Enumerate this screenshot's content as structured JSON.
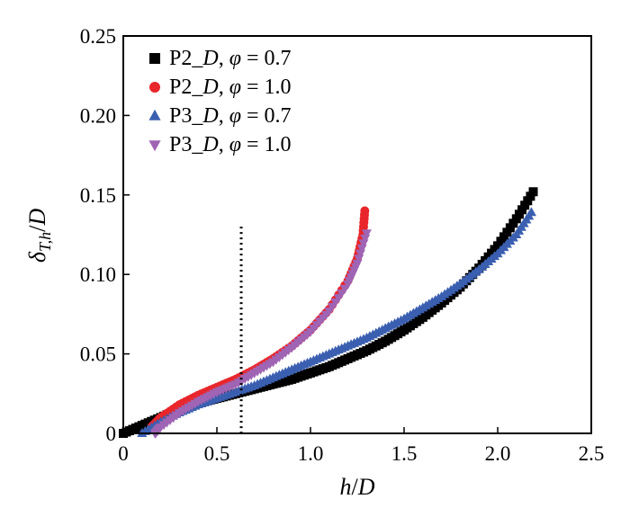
{
  "chart_data": {
    "type": "scatter",
    "title": "",
    "xlabel": {
      "main": "h",
      "sep": "/",
      "den": "D"
    },
    "ylabel": {
      "main": "δ",
      "sub": "T,h",
      "sep": "/",
      "den": "D"
    },
    "xlim": [
      0,
      2.5
    ],
    "ylim": [
      0,
      0.25
    ],
    "x_ticks": [
      "0",
      "0.5",
      "1.0",
      "1.5",
      "2.0",
      "2.5"
    ],
    "x_tick_values": [
      0,
      0.5,
      1.0,
      1.5,
      2.0,
      2.5
    ],
    "y_ticks": [
      "0",
      "0.05",
      "0.10",
      "0.15",
      "0.20",
      "0.25"
    ],
    "y_tick_values": [
      0,
      0.05,
      0.1,
      0.15,
      0.2,
      0.25
    ],
    "grid": false,
    "legend_position": "top-left",
    "vline": {
      "x": 0.63,
      "style": "dotted"
    },
    "series": [
      {
        "name": {
          "pre": "P2_",
          "d": "D",
          "mid": ", ",
          "phi": "φ",
          "eq": " = 0.7"
        },
        "marker": "square",
        "color": "#000000",
        "points": [
          [
            0.0,
            0.0
          ],
          [
            0.1,
            0.005
          ],
          [
            0.2,
            0.01
          ],
          [
            0.3,
            0.015
          ],
          [
            0.4,
            0.019
          ],
          [
            0.5,
            0.022
          ],
          [
            0.6,
            0.025
          ],
          [
            0.7,
            0.028
          ],
          [
            0.8,
            0.031
          ],
          [
            0.9,
            0.034
          ],
          [
            1.0,
            0.038
          ],
          [
            1.1,
            0.042
          ],
          [
            1.2,
            0.047
          ],
          [
            1.3,
            0.052
          ],
          [
            1.4,
            0.058
          ],
          [
            1.5,
            0.065
          ],
          [
            1.6,
            0.073
          ],
          [
            1.7,
            0.082
          ],
          [
            1.8,
            0.092
          ],
          [
            1.9,
            0.104
          ],
          [
            2.0,
            0.118
          ],
          [
            2.1,
            0.135
          ],
          [
            2.19,
            0.152
          ]
        ]
      },
      {
        "name": {
          "pre": "P2_",
          "d": "D",
          "mid": ", ",
          "phi": "φ",
          "eq": " = 1.0"
        },
        "marker": "circle",
        "color": "#e8262b",
        "points": [
          [
            0.15,
            0.004
          ],
          [
            0.2,
            0.01
          ],
          [
            0.3,
            0.018
          ],
          [
            0.4,
            0.024
          ],
          [
            0.5,
            0.029
          ],
          [
            0.6,
            0.034
          ],
          [
            0.7,
            0.04
          ],
          [
            0.8,
            0.047
          ],
          [
            0.9,
            0.055
          ],
          [
            1.0,
            0.065
          ],
          [
            1.1,
            0.078
          ],
          [
            1.2,
            0.096
          ],
          [
            1.25,
            0.11
          ],
          [
            1.28,
            0.125
          ],
          [
            1.29,
            0.14
          ]
        ]
      },
      {
        "name": {
          "pre": "P3_",
          "d": "D",
          "mid": ", ",
          "phi": "φ",
          "eq": " = 0.7"
        },
        "marker": "triangle-up",
        "color": "#3b5fb0",
        "points": [
          [
            0.1,
            0.0
          ],
          [
            0.2,
            0.007
          ],
          [
            0.3,
            0.013
          ],
          [
            0.4,
            0.018
          ],
          [
            0.5,
            0.022
          ],
          [
            0.6,
            0.026
          ],
          [
            0.7,
            0.03
          ],
          [
            0.8,
            0.035
          ],
          [
            0.9,
            0.04
          ],
          [
            1.0,
            0.045
          ],
          [
            1.1,
            0.05
          ],
          [
            1.2,
            0.055
          ],
          [
            1.3,
            0.06
          ],
          [
            1.4,
            0.066
          ],
          [
            1.5,
            0.072
          ],
          [
            1.6,
            0.079
          ],
          [
            1.7,
            0.086
          ],
          [
            1.8,
            0.094
          ],
          [
            1.9,
            0.103
          ],
          [
            2.0,
            0.113
          ],
          [
            2.1,
            0.125
          ],
          [
            2.18,
            0.139
          ]
        ]
      },
      {
        "name": {
          "pre": "P3_",
          "d": "D",
          "mid": ", ",
          "phi": "φ",
          "eq": " = 1.0"
        },
        "marker": "triangle-down",
        "color": "#a064b4",
        "points": [
          [
            0.17,
            0.0
          ],
          [
            0.2,
            0.004
          ],
          [
            0.3,
            0.013
          ],
          [
            0.4,
            0.02
          ],
          [
            0.5,
            0.026
          ],
          [
            0.6,
            0.031
          ],
          [
            0.7,
            0.038
          ],
          [
            0.8,
            0.045
          ],
          [
            0.9,
            0.054
          ],
          [
            1.0,
            0.064
          ],
          [
            1.1,
            0.077
          ],
          [
            1.2,
            0.094
          ],
          [
            1.25,
            0.107
          ],
          [
            1.3,
            0.126
          ]
        ]
      }
    ]
  }
}
